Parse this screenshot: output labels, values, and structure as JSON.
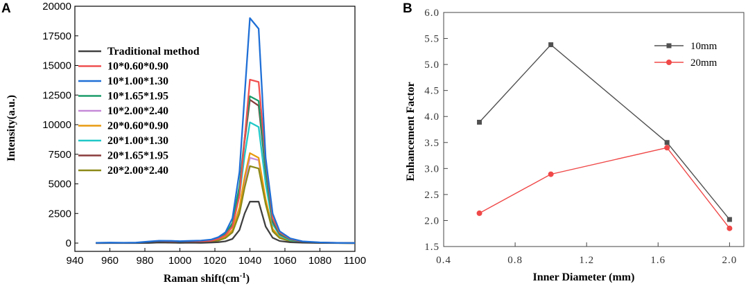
{
  "chart_data": [
    {
      "panel": "A",
      "type": "line",
      "xlabel": "Raman shift(cm",
      "xlabel_sup": "-1",
      "xlabel_end": ")",
      "ylabel": "Intensity(a.u.)",
      "xlim": [
        940,
        1100
      ],
      "ylim": [
        -700,
        20000
      ],
      "xticks": [
        940,
        960,
        980,
        1000,
        1020,
        1040,
        1060,
        1080,
        1100
      ],
      "yticks": [
        0,
        2500,
        5000,
        7500,
        10000,
        12500,
        15000,
        17500,
        20000
      ],
      "x": [
        952,
        960,
        968,
        975,
        982,
        988,
        995,
        1000,
        1006,
        1012,
        1018,
        1022,
        1026,
        1030,
        1034,
        1037,
        1040,
        1045,
        1049,
        1053,
        1057,
        1063,
        1070,
        1080,
        1090,
        1100
      ],
      "series": [
        {
          "name": "Traditional method",
          "color": "#404040",
          "values": [
            0,
            0,
            0,
            0,
            10,
            50,
            30,
            20,
            30,
            20,
            50,
            80,
            150,
            350,
            1100,
            2500,
            3500,
            3500,
            1400,
            450,
            180,
            70,
            30,
            10,
            0,
            0
          ]
        },
        {
          "name": "10*0.60*0.90",
          "color": "#f05050",
          "values": [
            0,
            10,
            20,
            20,
            60,
            120,
            100,
            80,
            100,
            120,
            200,
            350,
            650,
            1400,
            4000,
            8800,
            13800,
            13600,
            7000,
            2100,
            900,
            350,
            120,
            40,
            20,
            0
          ]
        },
        {
          "name": "10*1.00*1.30",
          "color": "#1f6fd6",
          "values": [
            20,
            40,
            30,
            40,
            130,
            200,
            190,
            160,
            190,
            210,
            300,
            500,
            900,
            2100,
            6000,
            12500,
            19000,
            18100,
            7200,
            2500,
            1000,
            400,
            150,
            60,
            20,
            10
          ]
        },
        {
          "name": "10*1.65*1.95",
          "color": "#1a9b6a",
          "values": [
            10,
            20,
            20,
            30,
            80,
            150,
            120,
            100,
            120,
            150,
            250,
            400,
            750,
            1700,
            4800,
            8900,
            12400,
            12000,
            6200,
            1900,
            800,
            300,
            110,
            40,
            10,
            0
          ]
        },
        {
          "name": "10*2.00*2.40",
          "color": "#c78ad8",
          "values": [
            10,
            10,
            10,
            20,
            60,
            90,
            80,
            70,
            80,
            90,
            150,
            250,
            450,
            1000,
            2700,
            5200,
            7200,
            7000,
            3600,
            1100,
            450,
            180,
            70,
            30,
            10,
            0
          ]
        },
        {
          "name": "20*0.60*0.90",
          "color": "#e89a10",
          "values": [
            10,
            10,
            20,
            20,
            60,
            110,
            90,
            80,
            90,
            110,
            170,
            280,
            500,
            1100,
            3000,
            5600,
            7600,
            7200,
            3700,
            1200,
            500,
            200,
            80,
            30,
            10,
            0
          ]
        },
        {
          "name": "20*1.00*1.30",
          "color": "#20c8c8",
          "values": [
            10,
            20,
            20,
            30,
            70,
            140,
            120,
            100,
            120,
            140,
            220,
            350,
            650,
            1400,
            4000,
            7400,
            10200,
            9800,
            5000,
            1600,
            650,
            250,
            90,
            30,
            10,
            0
          ]
        },
        {
          "name": "20*1.65*1.95",
          "color": "#8a3a3a",
          "values": [
            10,
            20,
            20,
            30,
            80,
            150,
            120,
            100,
            120,
            150,
            240,
            380,
            720,
            1600,
            4600,
            8600,
            12100,
            11600,
            6000,
            1800,
            750,
            300,
            100,
            40,
            10,
            0
          ]
        },
        {
          "name": "20*2.00*2.40",
          "color": "#8c8a18",
          "values": [
            0,
            10,
            10,
            20,
            50,
            80,
            70,
            60,
            70,
            80,
            130,
            220,
            420,
            900,
            2500,
            4700,
            6500,
            6300,
            3300,
            1000,
            420,
            160,
            60,
            20,
            10,
            0
          ]
        }
      ]
    },
    {
      "panel": "B",
      "type": "line",
      "xlabel": "Inner Diameter (mm)",
      "ylabel": "Enhancement Factor",
      "xlim": [
        0.4,
        2.08
      ],
      "ylim": [
        1.5,
        6.0
      ],
      "xticks": [
        0.4,
        0.8,
        1.2,
        1.6,
        2.0
      ],
      "xtick_labels": [
        "0.4",
        "0.8",
        "1.2",
        "1.6",
        "2.0"
      ],
      "yticks": [
        1.5,
        2.0,
        2.5,
        3.0,
        3.5,
        4.0,
        4.5,
        5.0,
        5.5,
        6.0
      ],
      "ytick_labels": [
        "1.5",
        "2.0",
        "2.5",
        "3.0",
        "3.5",
        "4.0",
        "4.5",
        "5.0",
        "5.5",
        "6.0"
      ],
      "x": [
        0.6,
        1.0,
        1.65,
        2.0
      ],
      "series": [
        {
          "name": "10mm",
          "color": "#505050",
          "marker": "square",
          "values": [
            3.89,
            5.38,
            3.5,
            2.02
          ]
        },
        {
          "name": "20mm",
          "color": "#f04848",
          "marker": "circle",
          "values": [
            2.14,
            2.89,
            3.4,
            1.85
          ]
        }
      ]
    }
  ],
  "panel_labels": {
    "a": "A",
    "b": "B"
  }
}
